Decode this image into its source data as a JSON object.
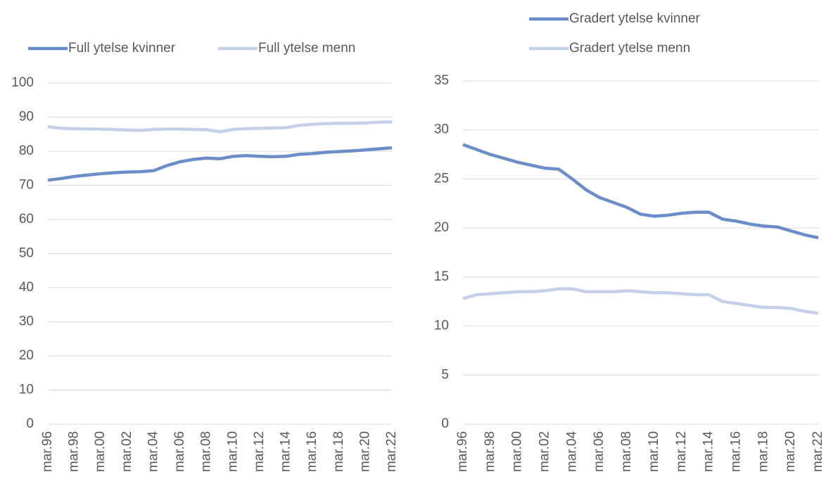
{
  "chart_data": [
    {
      "type": "line",
      "legend": "top",
      "categories": [
        "mar.96",
        null,
        "mar.98",
        null,
        "mar.00",
        null,
        "mar.02",
        null,
        "mar.04",
        null,
        "mar.06",
        null,
        "mar.08",
        null,
        "mar.10",
        null,
        "mar.12",
        null,
        "mar.14",
        null,
        "mar.16",
        null,
        "mar.18",
        null,
        "mar.20",
        null,
        "mar.22"
      ],
      "ylim": [
        0,
        100
      ],
      "yticks": [
        0,
        10,
        20,
        30,
        40,
        50,
        60,
        70,
        80,
        90,
        100
      ],
      "grid": true,
      "series": [
        {
          "name": "Full ytelse kvinner",
          "color": "#6b8ec8",
          "values": [
            71.5,
            72,
            72.6,
            73,
            73.4,
            73.7,
            73.9,
            74,
            74.3,
            75.8,
            76.9,
            77.6,
            78,
            77.8,
            78.5,
            78.7,
            78.5,
            78.4,
            78.5,
            79.1,
            79.3,
            79.7,
            79.9,
            80.1,
            80.4,
            80.7,
            81
          ]
        },
        {
          "name": "Full ytelse menn",
          "color": "#c5cfe8",
          "values": [
            87.2,
            86.7,
            86.6,
            86.5,
            86.5,
            86.4,
            86.2,
            86.1,
            86.4,
            86.5,
            86.5,
            86.4,
            86.3,
            85.7,
            86.4,
            86.6,
            86.7,
            86.8,
            86.9,
            87.6,
            87.9,
            88.1,
            88.2,
            88.2,
            88.3,
            88.5,
            88.6
          ]
        }
      ]
    },
    {
      "type": "line",
      "legend": "top",
      "categories": [
        "mar.96",
        null,
        "mar.98",
        null,
        "mar.00",
        null,
        "mar.02",
        null,
        "mar.04",
        null,
        "mar.06",
        null,
        "mar.08",
        null,
        "mar.10",
        null,
        "mar.12",
        null,
        "mar.14",
        null,
        "mar.16",
        null,
        "mar.18",
        null,
        "mar.20",
        null,
        "mar.22"
      ],
      "ylim": [
        0,
        35
      ],
      "yticks": [
        0,
        5,
        10,
        15,
        20,
        25,
        30,
        35
      ],
      "grid": true,
      "series": [
        {
          "name": "Gradert ytelse kvinner",
          "color": "#6b8ec8",
          "values": [
            28.5,
            28,
            27.5,
            27.1,
            26.7,
            26.4,
            26.1,
            26,
            25,
            23.9,
            23.1,
            22.6,
            22.1,
            21.4,
            21.2,
            21.3,
            21.5,
            21.6,
            21.6,
            20.9,
            20.7,
            20.4,
            20.2,
            20.1,
            19.7,
            19.3,
            19
          ]
        },
        {
          "name": "Gradert ytelse menn",
          "color": "#c5cfe8",
          "values": [
            12.8,
            13.2,
            13.3,
            13.4,
            13.5,
            13.5,
            13.6,
            13.8,
            13.8,
            13.5,
            13.5,
            13.5,
            13.6,
            13.5,
            13.4,
            13.4,
            13.3,
            13.2,
            13.2,
            12.5,
            12.3,
            12.1,
            11.9,
            11.9,
            11.8,
            11.5,
            11.3
          ]
        }
      ]
    }
  ]
}
